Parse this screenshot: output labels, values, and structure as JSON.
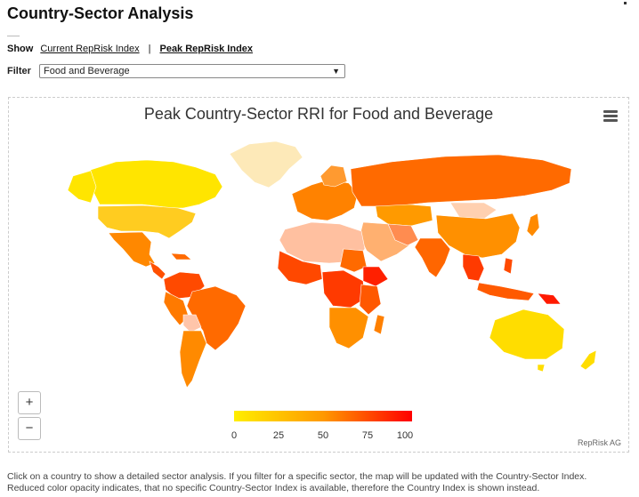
{
  "page": {
    "title": "Country-Sector Analysis"
  },
  "show": {
    "label": "Show",
    "options": [
      "Current RepRisk Index",
      "Peak RepRisk Index"
    ],
    "separator": "|",
    "active": "Peak RepRisk Index"
  },
  "filter": {
    "label": "Filter",
    "value": "Food and Beverage"
  },
  "map": {
    "title": "Peak Country-Sector RRI for Food and Beverage",
    "legend": {
      "ticks": [
        "0",
        "25",
        "50",
        "75",
        "100"
      ],
      "min_color": "#ffee00",
      "max_color": "#ff0000"
    },
    "credit": "RepRisk AG",
    "zoom_in": "+",
    "zoom_out": "−"
  },
  "footer": {
    "line1": "Click on a country to show a detailed sector analysis. If you filter for a specific sector, the map will be updated with the Country-Sector Index.",
    "line2": "Reduced color opacity indicates, that no specific Country-Sector Index is available, therefore the Country Index is shown instead."
  }
}
